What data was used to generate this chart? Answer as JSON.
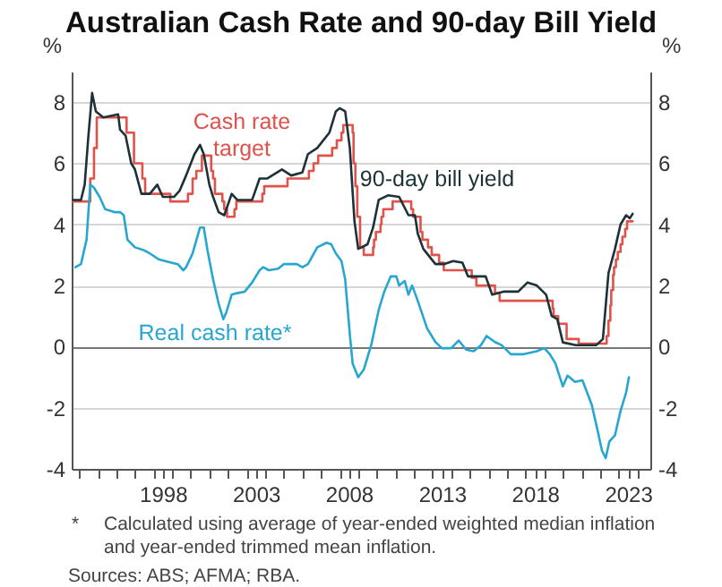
{
  "chart_data": {
    "type": "line",
    "title": "Australian Cash Rate and 90-day Bill Yield",
    "ylabel": "%",
    "y2label": "%",
    "xlim": [
      1993.6,
      2024.7
    ],
    "xticks": [
      {
        "value": 1994,
        "label": null
      },
      {
        "value": 1995,
        "label": null
      },
      {
        "value": 1996,
        "label": null
      },
      {
        "value": 1997,
        "label": null
      },
      {
        "value": 1998,
        "label": null
      },
      {
        "value": 1998.5,
        "label": "1998"
      },
      {
        "value": 1999,
        "label": null
      },
      {
        "value": 2000,
        "label": null
      },
      {
        "value": 2001,
        "label": null
      },
      {
        "value": 2002,
        "label": null
      },
      {
        "value": 2003,
        "label": null
      },
      {
        "value": 2003.5,
        "label": "2003"
      },
      {
        "value": 2004,
        "label": null
      },
      {
        "value": 2005,
        "label": null
      },
      {
        "value": 2006,
        "label": null
      },
      {
        "value": 2007,
        "label": null
      },
      {
        "value": 2008,
        "label": null
      },
      {
        "value": 2008.5,
        "label": "2008"
      },
      {
        "value": 2009,
        "label": null
      },
      {
        "value": 2010,
        "label": null
      },
      {
        "value": 2011,
        "label": null
      },
      {
        "value": 2012,
        "label": null
      },
      {
        "value": 2013,
        "label": null
      },
      {
        "value": 2013.5,
        "label": "2013"
      },
      {
        "value": 2014,
        "label": null
      },
      {
        "value": 2015,
        "label": null
      },
      {
        "value": 2016,
        "label": null
      },
      {
        "value": 2017,
        "label": null
      },
      {
        "value": 2018,
        "label": null
      },
      {
        "value": 2018.5,
        "label": "2018"
      },
      {
        "value": 2019,
        "label": null
      },
      {
        "value": 2020,
        "label": null
      },
      {
        "value": 2021,
        "label": null
      },
      {
        "value": 2022,
        "label": null
      },
      {
        "value": 2023,
        "label": null
      },
      {
        "value": 2023.5,
        "label": "2023"
      },
      {
        "value": 2024,
        "label": null
      }
    ],
    "ylim": [
      -4,
      9
    ],
    "yticks": [
      -4,
      -2,
      0,
      2,
      4,
      6,
      8
    ],
    "y2lim": [
      -4,
      9
    ],
    "y2ticks": [
      -4,
      -2,
      0,
      2,
      4,
      6,
      8
    ],
    "grid": "y",
    "annotations": [
      "* Calculated using average of year-ended weighted median inflation and year-ended trimmed mean inflation.",
      "Sources: ABS; AFMA; RBA."
    ],
    "series": [
      {
        "name": "Cash rate target",
        "type": "step",
        "color": "#e0524a",
        "x": [
          1993.6,
          1994.6,
          1994.8,
          1994.95,
          1996.55,
          1996.95,
          1997.4,
          1997.55,
          1998.9,
          1999.85,
          2000.1,
          2000.3,
          2000.6,
          2001.1,
          2001.2,
          2001.3,
          2001.7,
          2001.8,
          2001.95,
          2002.35,
          2002.45,
          2003.85,
          2003.95,
          2005.2,
          2006.35,
          2006.6,
          2006.85,
          2007.6,
          2007.85,
          2008.1,
          2008.2,
          2008.7,
          2008.75,
          2008.85,
          2008.95,
          2009.1,
          2009.3,
          2009.8,
          2009.85,
          2009.95,
          2010.2,
          2010.25,
          2010.35,
          2010.85,
          2011.85,
          2011.95,
          2012.35,
          2012.45,
          2012.75,
          2012.95,
          2013.35,
          2013.6,
          2015.1,
          2015.35,
          2016.35,
          2016.6,
          2019.45,
          2019.5,
          2019.75,
          2020.2,
          2020.85,
          2022.35,
          2022.45,
          2022.55,
          2022.6,
          2022.7,
          2022.75,
          2022.85,
          2022.95,
          2023.1,
          2023.2,
          2023.35,
          2023.45,
          2023.75
        ],
        "values": [
          4.75,
          5.5,
          6.5,
          7.5,
          7.0,
          6.0,
          5.5,
          5.0,
          4.75,
          5.0,
          5.5,
          5.75,
          6.25,
          5.75,
          5.5,
          5.0,
          4.75,
          4.5,
          4.25,
          4.5,
          4.75,
          5.0,
          5.25,
          5.5,
          5.75,
          6.0,
          6.25,
          6.5,
          6.75,
          7.0,
          7.25,
          7.0,
          6.0,
          5.25,
          4.25,
          3.25,
          3.0,
          3.25,
          3.5,
          3.75,
          4.0,
          4.25,
          4.5,
          4.75,
          4.5,
          4.25,
          3.75,
          3.5,
          3.25,
          3.0,
          2.75,
          2.5,
          2.25,
          2.0,
          1.75,
          1.5,
          1.25,
          1.0,
          0.75,
          0.25,
          0.1,
          0.35,
          0.85,
          1.35,
          1.85,
          2.35,
          2.6,
          2.85,
          3.1,
          3.35,
          3.6,
          3.85,
          4.1,
          4.1
        ]
      },
      {
        "name": "90-day bill yield",
        "type": "line",
        "color": "#1d3238",
        "x": [
          1993.66,
          1994.1,
          1994.3,
          1994.5,
          1994.7,
          1994.9,
          1995.3,
          1996.1,
          1996.2,
          1996.5,
          1996.8,
          1997.0,
          1997.35,
          1997.8,
          1998.2,
          1998.5,
          1999.1,
          1999.4,
          1999.75,
          2000.2,
          2000.5,
          2000.7,
          2001.0,
          2001.2,
          2001.5,
          2001.8,
          2002.2,
          2002.5,
          2003.3,
          2003.7,
          2004.1,
          2004.9,
          2005.4,
          2006.0,
          2006.3,
          2006.8,
          2007.45,
          2007.8,
          2008.0,
          2008.3,
          2008.55,
          2008.8,
          2009.0,
          2009.5,
          2009.8,
          2010.1,
          2010.6,
          2011.2,
          2011.7,
          2012.05,
          2012.2,
          2012.5,
          2013.15,
          2013.6,
          2014.1,
          2014.6,
          2014.9,
          2015.2,
          2015.85,
          2016.2,
          2016.8,
          2017.6,
          2018.1,
          2018.6,
          2019.1,
          2019.4,
          2019.7,
          2020.0,
          2020.7,
          2021.8,
          2022.15,
          2022.45,
          2022.8,
          2023.1,
          2023.4,
          2023.6,
          2023.75
        ],
        "values": [
          4.8,
          4.8,
          5.3,
          6.9,
          8.3,
          7.7,
          7.5,
          7.6,
          7.1,
          6.9,
          6.0,
          5.8,
          5.0,
          5.0,
          5.3,
          4.9,
          4.9,
          5.1,
          5.6,
          6.3,
          6.6,
          6.3,
          5.3,
          4.9,
          4.4,
          4.3,
          5.0,
          4.8,
          4.8,
          5.5,
          5.5,
          5.8,
          5.6,
          5.7,
          6.3,
          6.5,
          7.0,
          7.7,
          7.8,
          7.7,
          6.5,
          4.1,
          3.2,
          3.35,
          3.9,
          4.8,
          4.95,
          4.9,
          4.3,
          4.3,
          3.7,
          3.2,
          2.7,
          2.7,
          2.8,
          2.75,
          2.3,
          2.3,
          2.3,
          1.7,
          1.8,
          1.8,
          2.1,
          2.0,
          1.7,
          1.0,
          0.9,
          0.14,
          0.05,
          0.05,
          0.25,
          2.4,
          3.2,
          4.0,
          4.3,
          4.2,
          4.35
        ]
      },
      {
        "name": "Real cash rate*",
        "type": "line",
        "color": "#27a6cf",
        "x": [
          1993.8,
          1994.1,
          1994.4,
          1994.6,
          1994.8,
          1995.1,
          1995.4,
          1995.9,
          1996.2,
          1996.4,
          1996.6,
          1997.0,
          1997.5,
          1997.8,
          1998.3,
          1998.95,
          1999.3,
          1999.6,
          1999.75,
          2000.1,
          2000.5,
          2000.7,
          2000.9,
          2001.2,
          2001.5,
          2001.75,
          2001.9,
          2002.2,
          2002.5,
          2002.9,
          2003.3,
          2003.7,
          2003.9,
          2004.2,
          2004.7,
          2005.0,
          2005.7,
          2006.0,
          2006.3,
          2006.8,
          2007.3,
          2007.55,
          2007.8,
          2008.1,
          2008.3,
          2008.55,
          2008.7,
          2009.0,
          2009.3,
          2009.7,
          2010.1,
          2010.4,
          2010.75,
          2011.05,
          2011.2,
          2011.5,
          2011.7,
          2011.9,
          2012.2,
          2012.7,
          2013.15,
          2013.5,
          2014.0,
          2014.4,
          2014.8,
          2015.2,
          2015.6,
          2015.9,
          2016.35,
          2016.7,
          2017.2,
          2017.85,
          2018.6,
          2019.0,
          2019.3,
          2019.6,
          2020.0,
          2020.25,
          2020.65,
          2021.05,
          2021.55,
          2021.85,
          2022.1,
          2022.3,
          2022.5,
          2022.8,
          2023.1,
          2023.4,
          2023.55
        ],
        "values": [
          2.6,
          2.7,
          3.5,
          5.3,
          5.2,
          4.9,
          4.5,
          4.4,
          4.4,
          4.3,
          3.5,
          3.25,
          3.15,
          3.05,
          2.85,
          2.75,
          2.7,
          2.5,
          2.6,
          3.05,
          3.9,
          3.9,
          3.15,
          2.2,
          1.4,
          0.9,
          1.1,
          1.7,
          1.75,
          1.8,
          2.1,
          2.5,
          2.6,
          2.5,
          2.55,
          2.7,
          2.7,
          2.6,
          2.7,
          3.25,
          3.4,
          3.35,
          3.05,
          2.8,
          2.2,
          0.4,
          -0.55,
          -1.0,
          -0.75,
          0.05,
          1.2,
          1.8,
          2.3,
          2.3,
          2.0,
          2.15,
          1.7,
          2.0,
          1.5,
          0.6,
          0.15,
          -0.05,
          -0.05,
          0.2,
          -0.1,
          -0.15,
          0.05,
          0.35,
          0.15,
          0.05,
          -0.25,
          -0.25,
          -0.15,
          -0.05,
          -0.25,
          -0.55,
          -1.3,
          -0.95,
          -1.15,
          -1.1,
          -1.9,
          -2.7,
          -3.4,
          -3.65,
          -3.1,
          -2.9,
          -2.1,
          -1.5,
          -1.0
        ]
      }
    ]
  }
}
